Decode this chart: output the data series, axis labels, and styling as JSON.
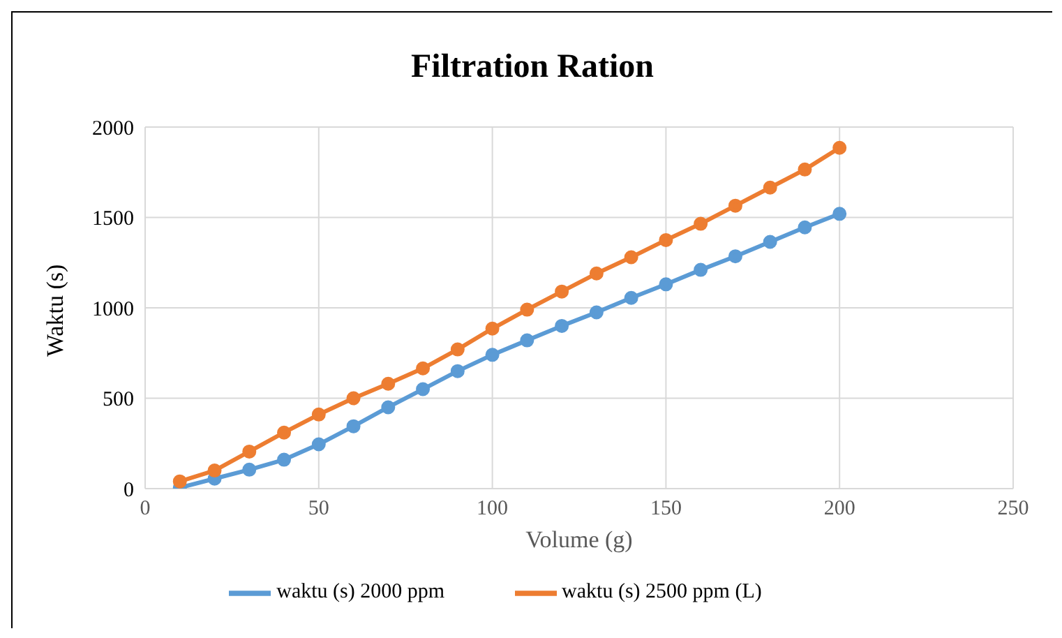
{
  "chart_data": {
    "type": "line",
    "title": "Filtration Ration",
    "xlabel": "Volume (g)",
    "ylabel": "Waktu (s)",
    "x": [
      10,
      20,
      30,
      40,
      50,
      60,
      70,
      80,
      90,
      100,
      110,
      120,
      130,
      140,
      150,
      160,
      170,
      180,
      190,
      200
    ],
    "series": [
      {
        "name": "waktu (s) 2000 ppm",
        "color": "#5b9bd5",
        "values": [
          5,
          55,
          105,
          160,
          245,
          345,
          450,
          550,
          650,
          740,
          820,
          900,
          975,
          1055,
          1130,
          1210,
          1285,
          1365,
          1445,
          1520
        ]
      },
      {
        "name": "waktu (s) 2500 ppm (L)",
        "color": "#ed7d31",
        "values": [
          40,
          100,
          205,
          310,
          410,
          500,
          580,
          665,
          770,
          885,
          990,
          1090,
          1190,
          1280,
          1375,
          1465,
          1565,
          1665,
          1765,
          1885
        ]
      }
    ],
    "xlim": [
      0,
      250
    ],
    "xticks": [
      0,
      50,
      100,
      150,
      200,
      250
    ],
    "ylim": [
      0,
      2000
    ],
    "yticks": [
      0,
      500,
      1000,
      1500,
      2000
    ],
    "grid": true,
    "legend": "bottom",
    "marker": "circle",
    "line_style": "solid"
  }
}
